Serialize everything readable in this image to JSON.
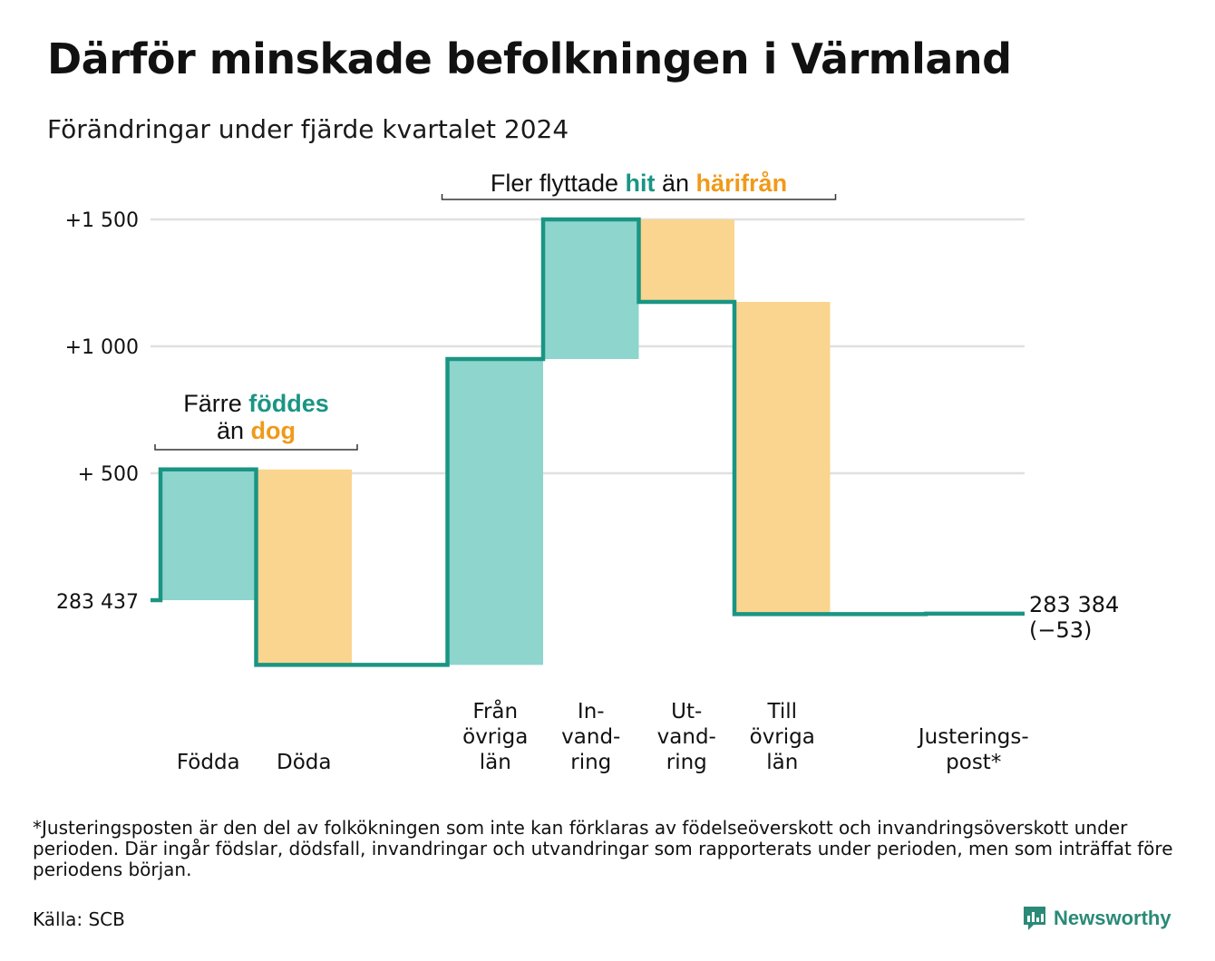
{
  "title": "Därför minskade befolkningen i Värmland",
  "subtitle": "Förändringar under fjärde kvartalet 2024",
  "colors": {
    "increase": "#8ed5cd",
    "decrease": "#fad58f",
    "line": "#1a9583",
    "accent_up": "#1a9583",
    "accent_down": "#f09a1a",
    "grid": "#e0e0e0"
  },
  "chart_data": {
    "type": "waterfall",
    "start_value": 283437,
    "start_label": "283 437",
    "end_label": "283 384",
    "end_change_label": "(−53)",
    "y_ticks": [
      {
        "offset": 500,
        "label": "+  500"
      },
      {
        "offset": 1000,
        "label": "+1 000"
      },
      {
        "offset": 1500,
        "label": "+1 500"
      }
    ],
    "ylim_offset": [
      -300,
      1500
    ],
    "grid": true,
    "steps": [
      {
        "label_lines": [
          "Födda"
        ],
        "change": 515,
        "direction": "up"
      },
      {
        "label_lines": [
          "Döda"
        ],
        "change": -770,
        "direction": "down"
      },
      {
        "label_lines": [],
        "change": 0,
        "direction": "none"
      },
      {
        "label_lines": [
          "Från",
          "övriga",
          "län"
        ],
        "change": 1205,
        "direction": "up"
      },
      {
        "label_lines": [
          "In-",
          "vand-",
          "ring"
        ],
        "change": 550,
        "direction": "up"
      },
      {
        "label_lines": [
          "Ut-",
          "vand-",
          "ring"
        ],
        "change": -325,
        "direction": "down"
      },
      {
        "label_lines": [
          "Till",
          "övriga",
          "län"
        ],
        "change": -1230,
        "direction": "down"
      },
      {
        "label_lines": [],
        "change": 0,
        "direction": "none"
      },
      {
        "label_lines": [
          "Justerings-",
          "post*"
        ],
        "change": 2,
        "direction": "up"
      }
    ],
    "annotations": [
      {
        "parts": [
          {
            "text": "Färre ",
            "style": "normal"
          },
          {
            "text": "föddes",
            "style": "up"
          }
        ],
        "parts2": [
          {
            "text": "än ",
            "style": "normal"
          },
          {
            "text": "dog",
            "style": "down"
          }
        ],
        "span": [
          0,
          1
        ]
      },
      {
        "parts": [
          {
            "text": "Fler flyttade ",
            "style": "normal"
          },
          {
            "text": "hit",
            "style": "up"
          },
          {
            "text": " än ",
            "style": "normal"
          },
          {
            "text": "härifrån",
            "style": "down"
          }
        ],
        "span": [
          3,
          6
        ]
      }
    ]
  },
  "footnote": "*Justeringsposten är den del av folkökningen som inte kan förklaras av födelseöverskott och invandringsöverskott under perioden. Där ingår födslar, dödsfall, invandringar och utvandringar som rapporterats under perioden, men som inträffat före periodens början.",
  "source": "Källa: SCB",
  "brand": "Newsworthy"
}
